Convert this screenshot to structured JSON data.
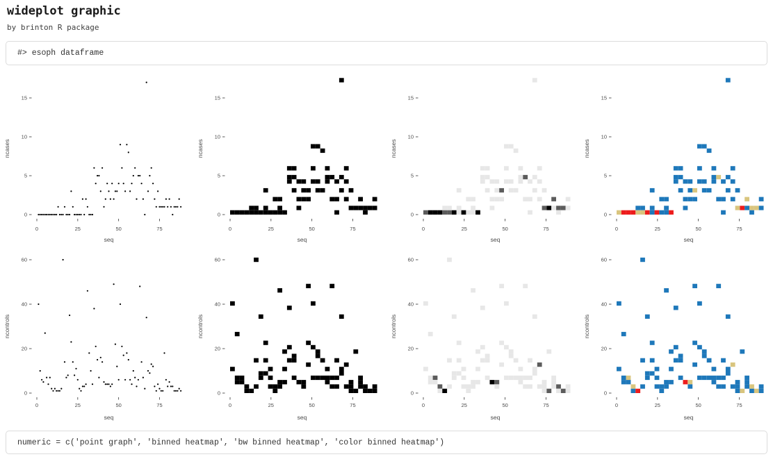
{
  "header": {
    "title": "wideplot graphic",
    "subtitle": "by brinton R package"
  },
  "code_top": {
    "text": "#> esoph dataframe"
  },
  "code_bottom": {
    "text": "numeric = c('point graph', 'binned heatmap', 'bw binned heatmap', 'color binned heatmap')"
  },
  "chart_data": {
    "type": "scatter",
    "xlabel": "seq",
    "x_ticks": [
      0,
      25,
      50,
      75
    ],
    "bins": 30,
    "panel_styles": [
      "point graph",
      "binned heatmap",
      "bw binned heatmap",
      "color binned heatmap"
    ],
    "x": [
      1,
      2,
      3,
      4,
      5,
      6,
      7,
      8,
      9,
      10,
      11,
      12,
      13,
      14,
      15,
      16,
      17,
      18,
      19,
      20,
      21,
      22,
      23,
      24,
      25,
      26,
      27,
      28,
      29,
      30,
      31,
      32,
      33,
      34,
      35,
      36,
      37,
      38,
      39,
      40,
      41,
      42,
      43,
      44,
      45,
      46,
      47,
      48,
      49,
      50,
      51,
      52,
      53,
      54,
      55,
      56,
      57,
      58,
      59,
      60,
      61,
      62,
      63,
      64,
      65,
      66,
      67,
      68,
      69,
      70,
      71,
      72,
      73,
      74,
      75,
      76,
      77,
      78,
      79,
      80,
      81,
      82,
      83,
      84,
      85,
      86,
      87,
      88
    ],
    "series": {
      "ncases": {
        "ylabel": "ncases",
        "y_ticks": [
          0,
          5,
          10,
          15
        ],
        "ymin": 0,
        "ymax": 17,
        "values": [
          0,
          0,
          0,
          0,
          0,
          0,
          0,
          0,
          0,
          0,
          0,
          0,
          1,
          0,
          0,
          0,
          1,
          0,
          0,
          0,
          3,
          1,
          0,
          0,
          0,
          0,
          0,
          2,
          0,
          2,
          1,
          0,
          0,
          0,
          6,
          4,
          5,
          5,
          3,
          6,
          1,
          2,
          4,
          3,
          2,
          4,
          2,
          3,
          3,
          4,
          9,
          6,
          4,
          3,
          9,
          8,
          3,
          4,
          5,
          6,
          2,
          5,
          5,
          4,
          2,
          0,
          17,
          3,
          5,
          6,
          4,
          2,
          1,
          3,
          1,
          1,
          1,
          1,
          2,
          1,
          2,
          1,
          0,
          1,
          1,
          1,
          2,
          1
        ]
      },
      "ncontrols": {
        "ylabel": "ncontrols",
        "y_ticks": [
          0,
          20,
          40,
          60
        ],
        "ymin": 1,
        "ymax": 60,
        "values": [
          40,
          10,
          6,
          5,
          27,
          7,
          4,
          7,
          2,
          1,
          2,
          1,
          1,
          1,
          2,
          60,
          14,
          7,
          8,
          35,
          23,
          14,
          8,
          11,
          6,
          2,
          1,
          3,
          3,
          4,
          46,
          18,
          10,
          4,
          38,
          21,
          15,
          7,
          16,
          14,
          5,
          4,
          4,
          4,
          3,
          4,
          49,
          22,
          12,
          6,
          40,
          21,
          17,
          6,
          18,
          15,
          6,
          4,
          10,
          7,
          3,
          6,
          48,
          14,
          7,
          2,
          34,
          10,
          9,
          13,
          12,
          3,
          1,
          4,
          2,
          1,
          1,
          18,
          6,
          3,
          5,
          3,
          3,
          1,
          1,
          1,
          2,
          1
        ]
      }
    },
    "panels": [
      {
        "series": "ncases",
        "style": "point graph"
      },
      {
        "series": "ncases",
        "style": "binned heatmap"
      },
      {
        "series": "ncases",
        "style": "bw binned heatmap"
      },
      {
        "series": "ncases",
        "style": "color binned heatmap"
      },
      {
        "series": "ncontrols",
        "style": "point graph"
      },
      {
        "series": "ncontrols",
        "style": "binned heatmap"
      },
      {
        "series": "ncontrols",
        "style": "bw binned heatmap"
      },
      {
        "series": "ncontrols",
        "style": "color binned heatmap"
      }
    ],
    "colors": {
      "point": "#000000",
      "binned": "#000000",
      "bw_scale": [
        "#e7e7e7",
        "#5c5c5c",
        "#000000"
      ],
      "color_scale": [
        "#1e78ba",
        "#d9c57e",
        "#ed1c1c"
      ],
      "tick": "#333333",
      "axis_text": "#4a4a4a"
    }
  }
}
